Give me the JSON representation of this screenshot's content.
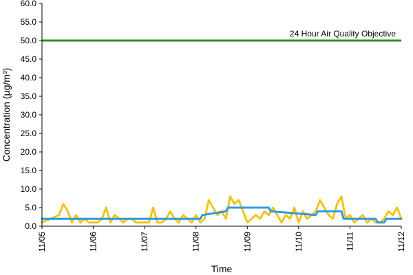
{
  "chart_data": {
    "type": "line",
    "title": "",
    "xlabel": "Time",
    "ylabel": "Concentration (µg/m³)",
    "ylim": [
      0,
      60
    ],
    "yticks": [
      "0.0",
      "5.0",
      "10.0",
      "15.0",
      "20.0",
      "25.0",
      "30.0",
      "35.0",
      "40.0",
      "45.0",
      "50.0",
      "55.0",
      "60.0"
    ],
    "xticks": [
      "11/05",
      "11/06",
      "11/07",
      "11/08",
      "11/09",
      "11/10",
      "11/11",
      "11/12"
    ],
    "xlim_days": [
      0,
      7
    ],
    "grid": false,
    "annotation": "24 Hour Air Quality Objective",
    "objective": {
      "value": 50,
      "color": "#2e8b2e"
    },
    "series": [
      {
        "key": "hourly",
        "color": "#f0c419",
        "x_hours": [
          0,
          4,
          8,
          10,
          12,
          14,
          16,
          18,
          20,
          22,
          24,
          26,
          28,
          30,
          32,
          34,
          36,
          38,
          40,
          42,
          44,
          46,
          48,
          50,
          52,
          54,
          56,
          58,
          60,
          62,
          64,
          66,
          68,
          70,
          72,
          74,
          76,
          78,
          80,
          82,
          84,
          86,
          88,
          90,
          92,
          94,
          96,
          98,
          100,
          102,
          104,
          106,
          108,
          110,
          112,
          114,
          116,
          118,
          120,
          122,
          124,
          126,
          128,
          130,
          132,
          134,
          136,
          138,
          140,
          142,
          144,
          146,
          148,
          150,
          152,
          154,
          156,
          158,
          160,
          162,
          164,
          166,
          168
        ],
        "values": [
          1,
          2,
          3,
          6,
          4,
          1,
          3,
          1,
          2,
          1,
          1,
          1,
          2,
          5,
          1,
          3,
          2,
          1,
          2,
          2,
          1,
          1,
          1,
          1,
          5,
          1,
          1,
          2,
          4,
          2,
          1,
          3,
          2,
          1,
          3,
          1,
          2,
          7,
          5,
          3,
          4,
          2,
          8,
          6,
          7,
          4,
          1,
          2,
          3,
          2,
          4,
          3,
          5,
          3,
          1,
          3,
          2,
          5,
          1,
          4,
          2,
          3,
          4,
          7,
          5,
          3,
          2,
          6,
          8,
          2,
          3,
          1,
          2,
          3,
          1,
          2,
          1,
          1,
          2,
          4,
          3,
          5,
          2
        ]
      },
      {
        "key": "24h-average",
        "color": "#2f9ae0",
        "x_hours": [
          0,
          74,
          75,
          86,
          87,
          106,
          107,
          128,
          129,
          140,
          141,
          146,
          147,
          156,
          157,
          160,
          161,
          168
        ],
        "values": [
          2,
          2,
          3,
          4,
          5,
          5,
          4,
          3,
          4,
          4,
          2,
          2,
          2,
          2,
          1,
          1,
          2,
          2
        ]
      }
    ]
  }
}
